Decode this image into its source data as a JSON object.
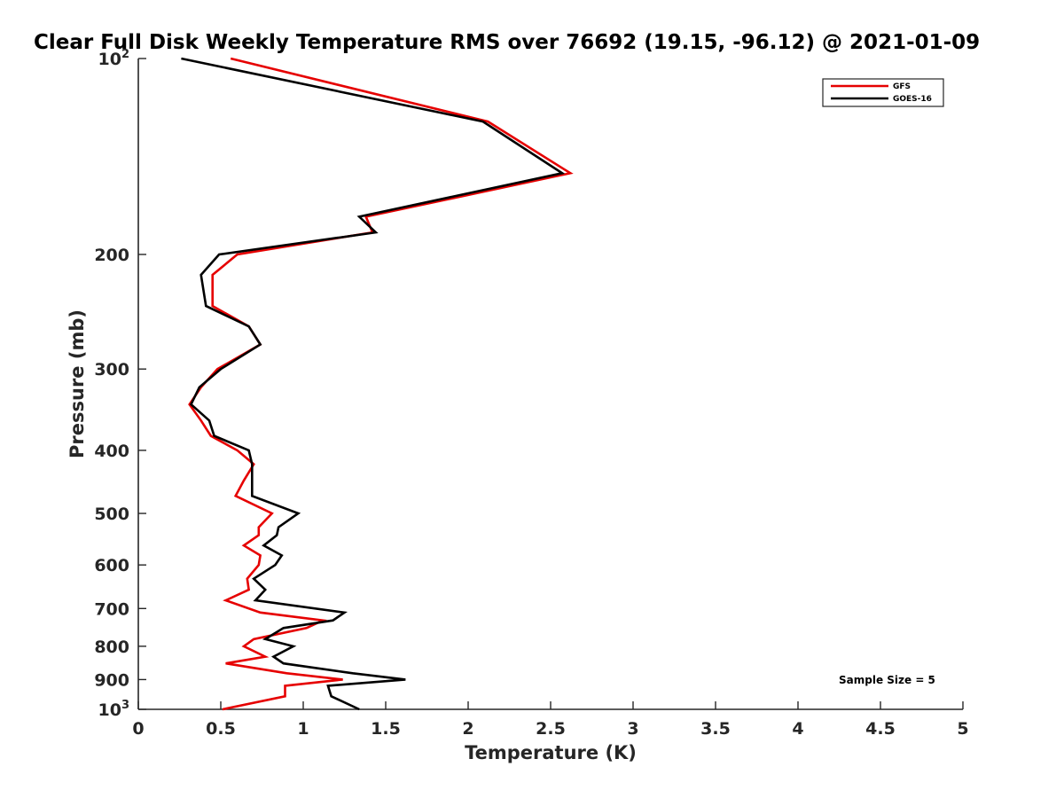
{
  "chart_data": {
    "type": "line",
    "title": "Clear Full Disk Weekly Temperature RMS over 76692 (19.15, -96.12) @ 2021-01-09",
    "xlabel": "Temperature (K)",
    "ylabel": "Pressure (mb)",
    "xlim": [
      0,
      5
    ],
    "ylim": [
      1000,
      100
    ],
    "yscale": "log",
    "y_reversed": true,
    "grid": false,
    "legend_position": "top-right",
    "x_ticks": [
      "0",
      "0.5",
      "1",
      "1.5",
      "2",
      "2.5",
      "3",
      "3.5",
      "4",
      "4.5",
      "5"
    ],
    "y_ticks": [
      {
        "value": 100,
        "base": "10",
        "exp": "2"
      },
      {
        "value": 200,
        "label": "200"
      },
      {
        "value": 300,
        "label": "300"
      },
      {
        "value": 400,
        "label": "400"
      },
      {
        "value": 500,
        "label": "500"
      },
      {
        "value": 600,
        "label": "600"
      },
      {
        "value": 700,
        "label": "700"
      },
      {
        "value": 800,
        "label": "800"
      },
      {
        "value": 900,
        "label": "900"
      },
      {
        "value": 1000,
        "base": "10",
        "exp": "3"
      }
    ],
    "annotation": "Sample Size = 5",
    "series": [
      {
        "name": "GFS",
        "color": "#e60000",
        "points": [
          {
            "x": 0.56,
            "y": 100
          },
          {
            "x": 2.12,
            "y": 125
          },
          {
            "x": 2.62,
            "y": 150
          },
          {
            "x": 1.38,
            "y": 175
          },
          {
            "x": 1.42,
            "y": 185
          },
          {
            "x": 0.6,
            "y": 200
          },
          {
            "x": 0.45,
            "y": 215
          },
          {
            "x": 0.45,
            "y": 240
          },
          {
            "x": 0.67,
            "y": 258
          },
          {
            "x": 0.74,
            "y": 275
          },
          {
            "x": 0.48,
            "y": 300
          },
          {
            "x": 0.38,
            "y": 320
          },
          {
            "x": 0.31,
            "y": 340
          },
          {
            "x": 0.38,
            "y": 360
          },
          {
            "x": 0.44,
            "y": 380
          },
          {
            "x": 0.6,
            "y": 400
          },
          {
            "x": 0.7,
            "y": 420
          },
          {
            "x": 0.64,
            "y": 445
          },
          {
            "x": 0.59,
            "y": 470
          },
          {
            "x": 0.81,
            "y": 500
          },
          {
            "x": 0.73,
            "y": 525
          },
          {
            "x": 0.73,
            "y": 540
          },
          {
            "x": 0.64,
            "y": 560
          },
          {
            "x": 0.74,
            "y": 580
          },
          {
            "x": 0.73,
            "y": 600
          },
          {
            "x": 0.66,
            "y": 630
          },
          {
            "x": 0.67,
            "y": 655
          },
          {
            "x": 0.53,
            "y": 680
          },
          {
            "x": 0.74,
            "y": 710
          },
          {
            "x": 1.12,
            "y": 730
          },
          {
            "x": 1.02,
            "y": 750
          },
          {
            "x": 0.7,
            "y": 780
          },
          {
            "x": 0.64,
            "y": 800
          },
          {
            "x": 0.77,
            "y": 830
          },
          {
            "x": 0.53,
            "y": 850
          },
          {
            "x": 0.9,
            "y": 880
          },
          {
            "x": 1.24,
            "y": 900
          },
          {
            "x": 0.89,
            "y": 920
          },
          {
            "x": 0.89,
            "y": 955
          },
          {
            "x": 0.51,
            "y": 1000
          }
        ]
      },
      {
        "name": "GOES-16",
        "color": "#000000",
        "points": [
          {
            "x": 0.26,
            "y": 100
          },
          {
            "x": 2.09,
            "y": 125
          },
          {
            "x": 2.57,
            "y": 150
          },
          {
            "x": 1.34,
            "y": 175
          },
          {
            "x": 1.44,
            "y": 185
          },
          {
            "x": 0.49,
            "y": 200
          },
          {
            "x": 0.38,
            "y": 215
          },
          {
            "x": 0.41,
            "y": 240
          },
          {
            "x": 0.67,
            "y": 258
          },
          {
            "x": 0.74,
            "y": 275
          },
          {
            "x": 0.5,
            "y": 300
          },
          {
            "x": 0.37,
            "y": 320
          },
          {
            "x": 0.32,
            "y": 340
          },
          {
            "x": 0.43,
            "y": 360
          },
          {
            "x": 0.46,
            "y": 380
          },
          {
            "x": 0.67,
            "y": 400
          },
          {
            "x": 0.69,
            "y": 420
          },
          {
            "x": 0.69,
            "y": 445
          },
          {
            "x": 0.69,
            "y": 470
          },
          {
            "x": 0.97,
            "y": 500
          },
          {
            "x": 0.85,
            "y": 525
          },
          {
            "x": 0.84,
            "y": 540
          },
          {
            "x": 0.76,
            "y": 560
          },
          {
            "x": 0.87,
            "y": 580
          },
          {
            "x": 0.83,
            "y": 600
          },
          {
            "x": 0.7,
            "y": 630
          },
          {
            "x": 0.77,
            "y": 655
          },
          {
            "x": 0.71,
            "y": 680
          },
          {
            "x": 1.25,
            "y": 710
          },
          {
            "x": 1.18,
            "y": 730
          },
          {
            "x": 0.88,
            "y": 750
          },
          {
            "x": 0.77,
            "y": 780
          },
          {
            "x": 0.94,
            "y": 800
          },
          {
            "x": 0.82,
            "y": 830
          },
          {
            "x": 0.88,
            "y": 850
          },
          {
            "x": 1.3,
            "y": 880
          },
          {
            "x": 1.62,
            "y": 900
          },
          {
            "x": 1.15,
            "y": 920
          },
          {
            "x": 1.17,
            "y": 955
          },
          {
            "x": 1.34,
            "y": 1000
          }
        ]
      }
    ]
  }
}
